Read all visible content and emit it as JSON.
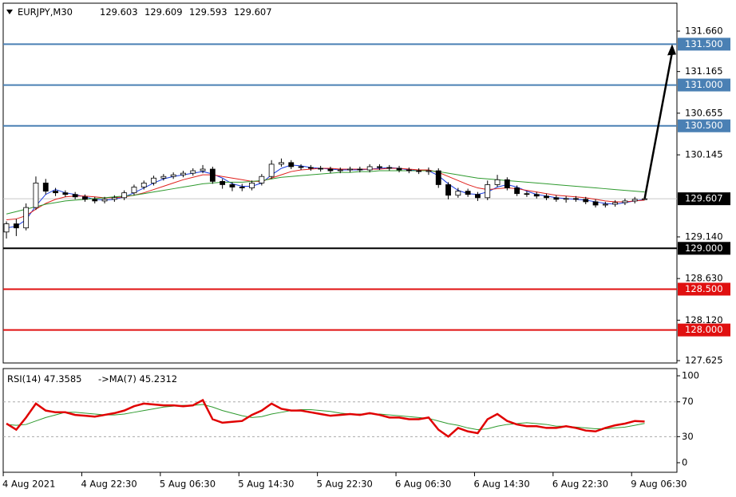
{
  "chart_data": [
    {
      "type": "candlestick",
      "symbol": "EURJPY,M30",
      "header_values": [
        129.603,
        129.609,
        129.593,
        129.607
      ],
      "open": [
        129.2,
        129.3,
        129.25,
        129.5,
        129.8,
        129.7,
        129.68,
        129.66,
        129.63,
        129.6,
        129.58,
        129.6,
        129.62,
        129.68,
        129.75,
        129.8,
        129.86,
        129.88,
        129.9,
        129.92,
        129.95,
        129.97,
        129.82,
        129.78,
        129.75,
        129.74,
        129.8,
        129.88,
        130.03,
        130.05,
        130.0,
        129.99,
        129.98,
        129.97,
        129.95,
        129.96,
        129.97,
        129.96,
        130.0,
        129.99,
        129.98,
        129.96,
        129.95,
        129.94,
        129.95,
        129.78,
        129.65,
        129.7,
        129.66,
        129.62,
        129.78,
        129.84,
        129.74,
        129.67,
        129.66,
        129.64,
        129.62,
        129.6,
        129.61,
        129.6,
        129.57,
        129.53,
        129.54,
        129.56,
        129.58,
        129.603
      ],
      "high": [
        129.33,
        129.36,
        129.55,
        129.88,
        129.85,
        129.74,
        129.71,
        129.69,
        129.66,
        129.63,
        129.63,
        129.65,
        129.71,
        129.78,
        129.83,
        129.89,
        129.91,
        129.93,
        129.95,
        129.98,
        130.02,
        130.0,
        129.85,
        129.81,
        129.79,
        129.83,
        129.91,
        130.08,
        130.1,
        130.08,
        130.03,
        130.02,
        130.01,
        130.0,
        129.99,
        130.0,
        130.0,
        130.03,
        130.03,
        130.02,
        130.01,
        129.99,
        129.98,
        129.99,
        129.98,
        129.81,
        129.74,
        129.73,
        129.69,
        129.83,
        129.9,
        129.87,
        129.77,
        129.7,
        129.69,
        129.67,
        129.65,
        129.64,
        129.64,
        129.63,
        129.6,
        129.57,
        129.59,
        129.61,
        129.63,
        129.609
      ],
      "low": [
        129.12,
        129.15,
        129.22,
        129.47,
        129.66,
        129.64,
        129.63,
        129.6,
        129.57,
        129.55,
        129.55,
        129.57,
        129.59,
        129.65,
        129.72,
        129.77,
        129.83,
        129.85,
        129.87,
        129.89,
        129.92,
        129.79,
        129.73,
        129.7,
        129.7,
        129.71,
        129.77,
        129.85,
        130.0,
        129.97,
        129.96,
        129.95,
        129.94,
        129.92,
        129.92,
        129.93,
        129.93,
        129.93,
        129.96,
        129.95,
        129.93,
        129.92,
        129.91,
        129.9,
        129.74,
        129.6,
        129.62,
        129.63,
        129.58,
        129.59,
        129.75,
        129.71,
        129.64,
        129.63,
        129.61,
        129.59,
        129.57,
        129.56,
        129.57,
        129.54,
        129.5,
        129.5,
        129.51,
        129.53,
        129.55,
        129.593
      ],
      "close": [
        129.3,
        129.25,
        129.5,
        129.8,
        129.7,
        129.68,
        129.66,
        129.63,
        129.6,
        129.58,
        129.6,
        129.62,
        129.68,
        129.75,
        129.8,
        129.86,
        129.88,
        129.9,
        129.92,
        129.95,
        129.97,
        129.82,
        129.78,
        129.75,
        129.74,
        129.8,
        129.88,
        130.03,
        130.05,
        130.0,
        129.99,
        129.98,
        129.97,
        129.95,
        129.96,
        129.97,
        129.96,
        130.0,
        129.99,
        129.98,
        129.96,
        129.95,
        129.94,
        129.95,
        129.78,
        129.65,
        129.7,
        129.66,
        129.62,
        129.78,
        129.84,
        129.74,
        129.67,
        129.66,
        129.64,
        129.62,
        129.6,
        129.61,
        129.6,
        129.57,
        129.53,
        129.54,
        129.56,
        129.58,
        129.6,
        129.607
      ],
      "series": [
        {
          "color": "#1c3de0",
          "values": [
            129.25,
            129.27,
            129.35,
            129.52,
            129.66,
            129.72,
            129.68,
            129.66,
            129.63,
            129.6,
            129.59,
            129.6,
            129.63,
            129.68,
            129.74,
            129.8,
            129.85,
            129.88,
            129.9,
            129.92,
            129.94,
            129.91,
            129.86,
            129.79,
            129.76,
            129.76,
            129.8,
            129.9,
            129.98,
            130.02,
            130.01,
            129.99,
            129.98,
            129.97,
            129.96,
            129.96,
            129.96,
            129.97,
            129.98,
            129.99,
            129.98,
            129.96,
            129.95,
            129.95,
            129.89,
            129.79,
            129.71,
            129.67,
            129.66,
            129.69,
            129.75,
            129.78,
            129.75,
            129.7,
            129.66,
            129.64,
            129.62,
            129.61,
            129.6,
            129.59,
            129.57,
            129.55,
            129.54,
            129.56,
            129.58,
            129.6
          ]
        },
        {
          "color": "#e0201c",
          "values": [
            129.35,
            129.36,
            129.4,
            129.48,
            129.55,
            129.6,
            129.63,
            129.64,
            129.64,
            129.63,
            129.62,
            129.62,
            129.63,
            129.65,
            129.68,
            129.72,
            129.76,
            129.8,
            129.84,
            129.87,
            129.9,
            129.9,
            129.88,
            129.86,
            129.84,
            129.82,
            129.82,
            129.86,
            129.9,
            129.94,
            129.96,
            129.97,
            129.98,
            129.98,
            129.97,
            129.97,
            129.97,
            129.97,
            129.97,
            129.98,
            129.98,
            129.97,
            129.96,
            129.96,
            129.93,
            129.88,
            129.83,
            129.78,
            129.74,
            129.72,
            129.73,
            129.74,
            129.73,
            129.71,
            129.69,
            129.67,
            129.65,
            129.64,
            129.63,
            129.62,
            129.6,
            129.58,
            129.57,
            129.57,
            129.58,
            129.59
          ]
        },
        {
          "color": "#2e9a2e",
          "values": [
            129.42,
            129.45,
            129.48,
            129.51,
            129.54,
            129.56,
            129.58,
            129.59,
            129.6,
            129.61,
            129.62,
            129.63,
            129.64,
            129.65,
            129.67,
            129.69,
            129.71,
            129.73,
            129.75,
            129.77,
            129.79,
            129.8,
            129.81,
            129.81,
            129.81,
            129.82,
            129.83,
            129.85,
            129.87,
            129.88,
            129.89,
            129.9,
            129.91,
            129.92,
            129.93,
            129.93,
            129.94,
            129.94,
            129.95,
            129.95,
            129.95,
            129.95,
            129.95,
            129.95,
            129.94,
            129.92,
            129.9,
            129.88,
            129.86,
            129.85,
            129.84,
            129.83,
            129.82,
            129.81,
            129.8,
            129.79,
            129.78,
            129.77,
            129.76,
            129.75,
            129.74,
            129.73,
            129.72,
            129.71,
            129.7,
            129.69
          ]
        }
      ],
      "ylim": [
        127.596,
        132.002
      ],
      "yticks": [
        {
          "value": 131.66,
          "label": "131.660"
        },
        131.165,
        130.655,
        130.145,
        {
          "value": 129.14,
          "label": "129.140"
        },
        {
          "value": 128.63,
          "label": "128.630"
        },
        {
          "value": 128.12,
          "label": "128.120"
        },
        127.625
      ],
      "levels": [
        {
          "value": 131.5,
          "label": "131.500",
          "color": "#4a80b4"
        },
        {
          "value": 131.0,
          "label": "131.000",
          "color": "#4a80b4"
        },
        {
          "value": 130.5,
          "label": "130.500",
          "color": "#4a80b4"
        },
        {
          "value": 129.0,
          "label": "129.000",
          "color": "#000000"
        },
        {
          "value": 128.5,
          "label": "128.500",
          "color": "#e01010"
        },
        {
          "value": 128.0,
          "label": "128.000",
          "color": "#e01010"
        }
      ],
      "current_price": 129.607,
      "xlim": [
        -0.33,
        68.29
      ],
      "xticks": [
        {
          "value": 0,
          "label": "4 Aug 2021"
        },
        {
          "value": 8,
          "label": "4 Aug 22:30"
        },
        {
          "value": 16,
          "label": "5 Aug 06:30"
        },
        {
          "value": 24,
          "label": "5 Aug 14:30"
        },
        {
          "value": 32,
          "label": "5 Aug 22:30"
        },
        {
          "value": 40,
          "label": "6 Aug 06:30"
        },
        {
          "value": 48,
          "label": "6 Aug 14:30"
        },
        {
          "value": 56,
          "label": "6 Aug 22:30"
        },
        {
          "value": 64,
          "label": "9 Aug 06:30"
        }
      ]
    },
    {
      "type": "line",
      "label": "RSI(14) 47.3585",
      "ma_label": "->MA(7) 45.2312",
      "series": [
        {
          "color": "#e00000",
          "values": [
            45,
            38,
            52,
            68,
            60,
            58,
            58,
            55,
            54,
            53,
            55,
            57,
            60,
            65,
            68,
            67,
            66,
            66,
            65,
            66,
            72,
            50,
            46,
            47,
            48,
            55,
            60,
            68,
            62,
            60,
            60,
            58,
            56,
            54,
            55,
            56,
            55,
            57,
            55,
            52,
            52,
            50,
            50,
            52,
            38,
            30,
            40,
            36,
            34,
            50,
            56,
            48,
            44,
            42,
            42,
            40,
            40,
            42,
            40,
            37,
            36,
            40,
            43,
            45,
            48,
            47.3585
          ]
        },
        {
          "color": "#2e9a2e",
          "values": [
            44,
            43,
            44,
            48,
            52,
            55,
            58,
            58,
            57,
            56,
            55,
            55,
            56,
            58,
            60,
            62,
            64,
            65,
            66,
            66,
            67,
            64,
            60,
            57,
            54,
            52,
            53,
            56,
            58,
            60,
            61,
            61,
            60,
            59,
            57,
            56,
            56,
            56,
            56,
            55,
            54,
            53,
            52,
            51,
            48,
            45,
            43,
            40,
            38,
            39,
            42,
            44,
            45,
            46,
            45,
            44,
            42,
            42,
            41,
            40,
            39,
            39,
            40,
            41,
            43,
            45.2312
          ]
        }
      ],
      "ylim": [
        -11,
        108.3
      ],
      "yticks": [
        100,
        70,
        30,
        0
      ],
      "guides": [
        70,
        30
      ]
    }
  ]
}
